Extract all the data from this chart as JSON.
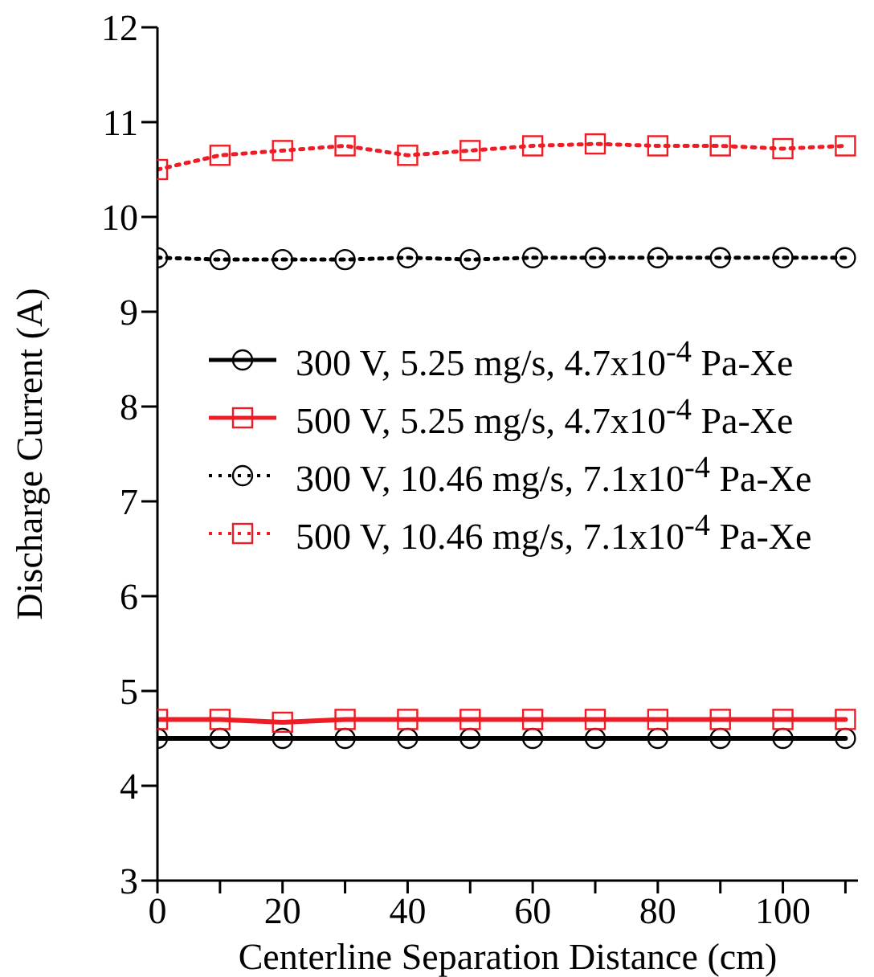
{
  "chart_data": {
    "type": "line",
    "xlabel": "Centerline Separation Distance (cm)",
    "ylabel": "Discharge Current (A)",
    "x": [
      0,
      10,
      20,
      30,
      40,
      50,
      60,
      70,
      80,
      90,
      100,
      110
    ],
    "series": [
      {
        "name": "300 V, 5.25 mg/s, 4.7x10$^{-4}$ Pa-Xe",
        "color": "#000000",
        "marker": "circle",
        "line_style": "solid",
        "values": [
          4.5,
          4.5,
          4.5,
          4.5,
          4.5,
          4.5,
          4.5,
          4.5,
          4.5,
          4.5,
          4.5,
          4.5
        ]
      },
      {
        "name": "500 V, 5.25 mg/s, 4.7x10$^{-4}$ Pa-Xe",
        "color": "#ee1c24",
        "marker": "square",
        "line_style": "solid",
        "values": [
          4.7,
          4.7,
          4.67,
          4.7,
          4.7,
          4.7,
          4.7,
          4.7,
          4.7,
          4.7,
          4.7,
          4.7
        ]
      },
      {
        "name": "300 V, 10.46 mg/s, 7.1x10$^{-4}$ Pa-Xe",
        "color": "#000000",
        "marker": "circle",
        "line_style": "dotted",
        "values": [
          9.57,
          9.55,
          9.55,
          9.55,
          9.57,
          9.55,
          9.57,
          9.57,
          9.57,
          9.57,
          9.57,
          9.57
        ]
      },
      {
        "name": "500 V, 10.46 mg/s, 7.1x10$^{-4}$ Pa-Xe",
        "color": "#ee1c24",
        "marker": "square",
        "line_style": "dotted",
        "values": [
          10.5,
          10.65,
          10.7,
          10.75,
          10.65,
          10.7,
          10.75,
          10.77,
          10.75,
          10.75,
          10.72,
          10.75
        ]
      }
    ],
    "xlim": [
      0,
      112
    ],
    "xticks": [
      0,
      {
        "value": 10,
        "label": null
      },
      20,
      {
        "value": 30,
        "label": null
      },
      40,
      {
        "value": 50,
        "label": null
      },
      60,
      {
        "value": 70,
        "label": null
      },
      80,
      {
        "value": 90,
        "label": null
      },
      100,
      {
        "value": 110,
        "label": null
      }
    ],
    "ylim": [
      3,
      12
    ],
    "yticks": [
      3,
      4,
      5,
      6,
      7,
      8,
      9,
      10,
      11,
      12
    ],
    "grid": false,
    "legend": "right"
  }
}
